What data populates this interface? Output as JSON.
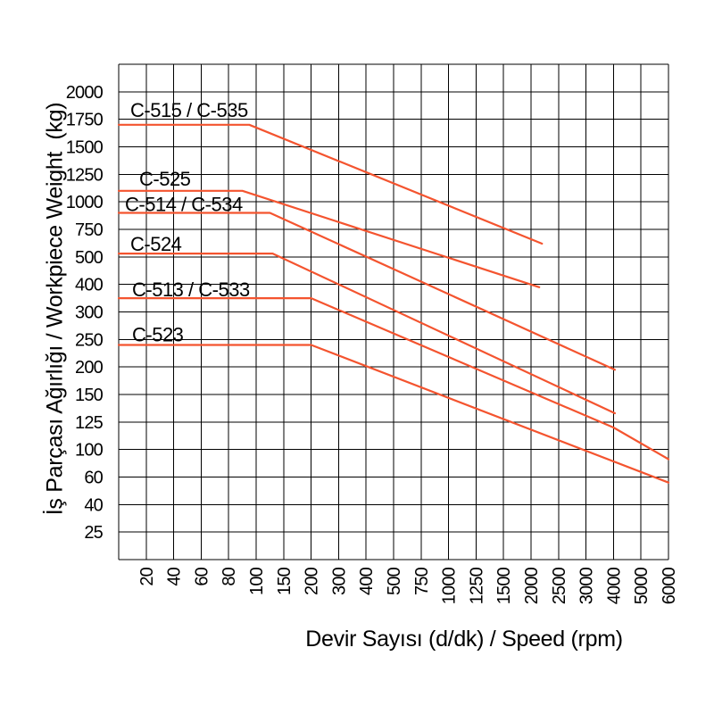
{
  "chart_data": {
    "type": "line",
    "title": "",
    "xlabel": "Devir Sayısı (d/dk) / Speed (rpm)",
    "ylabel": "İş Parçası Ağırlığı / Workpiece Weight  (kg)",
    "x_ticks": [
      20,
      40,
      60,
      80,
      100,
      150,
      200,
      300,
      400,
      500,
      750,
      1000,
      1250,
      1500,
      2000,
      2500,
      3000,
      4000,
      5000,
      6000
    ],
    "y_ticks": [
      2000,
      1750,
      1500,
      1250,
      1000,
      750,
      500,
      400,
      300,
      250,
      200,
      150,
      125,
      100,
      60,
      40,
      25
    ],
    "grid": true,
    "background": "#ffffff",
    "grid_color": "#000000",
    "text_color": "#000000",
    "line_color": "#f4542f",
    "x_axis_note": "x starts at unlabeled left edge (rpm 0), ticks equally spaced per label",
    "y_axis_note": "y gridlines equally spaced per label, unlabeled top and bottom edges",
    "series": [
      {
        "name": "C-515 / C-535",
        "label_x": 146,
        "label_dy": -9,
        "points": [
          [
            0,
            1700
          ],
          [
            95,
            1700
          ],
          [
            2200,
            620
          ]
        ]
      },
      {
        "name": "C-525",
        "label_x": 156,
        "label_dy": -6,
        "points": [
          [
            0,
            1100
          ],
          [
            90,
            1100
          ],
          [
            2150,
            390
          ]
        ]
      },
      {
        "name": "C-514 / C-534",
        "label_x": 140,
        "label_dy": -2,
        "points": [
          [
            0,
            900
          ],
          [
            125,
            900
          ],
          [
            4050,
            195
          ]
        ]
      },
      {
        "name": "C-524",
        "label_x": 146,
        "label_dy": -3,
        "points": [
          [
            0,
            530
          ],
          [
            130,
            530
          ],
          [
            4050,
            133
          ]
        ]
      },
      {
        "name": "C-513 / C-533",
        "label_x": 148,
        "label_dy": -2,
        "points": [
          [
            0,
            350
          ],
          [
            200,
            350
          ],
          [
            4000,
            120
          ],
          [
            6000,
            86
          ]
        ]
      },
      {
        "name": "C-523",
        "label_x": 148,
        "label_dy": -4,
        "points": [
          [
            0,
            240
          ],
          [
            200,
            240
          ],
          [
            6000,
            56
          ]
        ]
      }
    ]
  }
}
